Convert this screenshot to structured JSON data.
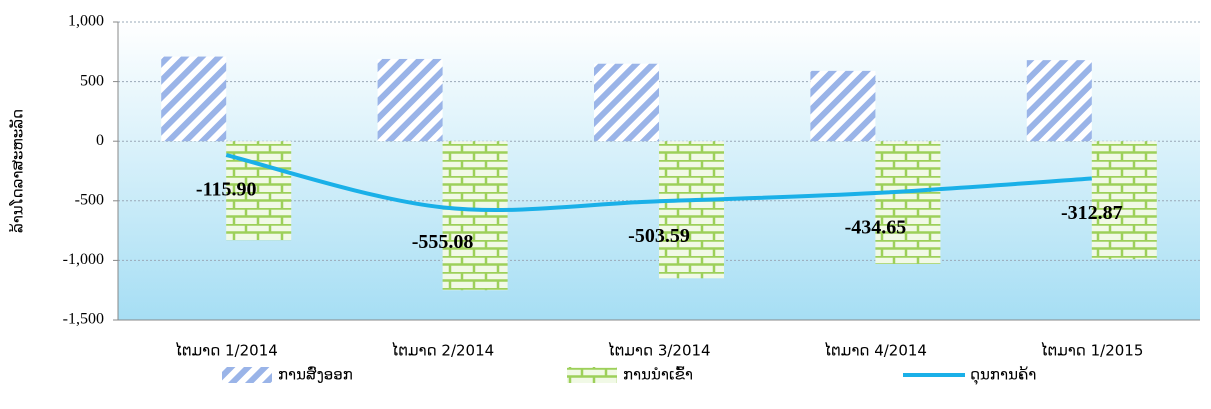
{
  "chart_data": {
    "type": "bar-line",
    "y_label": "ລ້ານໂດລາສະຫະລັດ",
    "categories": [
      "ໄຕມາດ 1/2014",
      "ໄຕມາດ 2/2014",
      "ໄຕມາດ 3/2014",
      "ໄຕມາດ 4/2014",
      "ໄຕມາດ 1/2015"
    ],
    "series": [
      {
        "name": "ການສົ່ງອອກ",
        "color": "#9ab4e8",
        "kind": "bar",
        "values": [
          710,
          690,
          650,
          590,
          680
        ]
      },
      {
        "name": "ການນຳເຂົ້າ",
        "color": "#9dd05a",
        "kind": "bar",
        "values": [
          -830,
          -1250,
          -1150,
          -1030,
          -990
        ]
      },
      {
        "name": "ດຸນການຄ້າ",
        "color": "#1ab0e8",
        "kind": "line",
        "values": [
          -115.9,
          -555.08,
          -503.59,
          -434.65,
          -312.87
        ],
        "value_labels": [
          "-115.90",
          "-555.08",
          "-503.59",
          "-434.65",
          "-312.87"
        ]
      }
    ],
    "ylim": [
      -1500,
      1000
    ],
    "yticks": [
      {
        "value": -1500,
        "label": "-1,500"
      },
      {
        "value": -1000,
        "label": "-1,000"
      },
      -500,
      0,
      500,
      {
        "value": 1000,
        "label": "1,000"
      }
    ],
    "grid": true,
    "legend": "bottom"
  }
}
